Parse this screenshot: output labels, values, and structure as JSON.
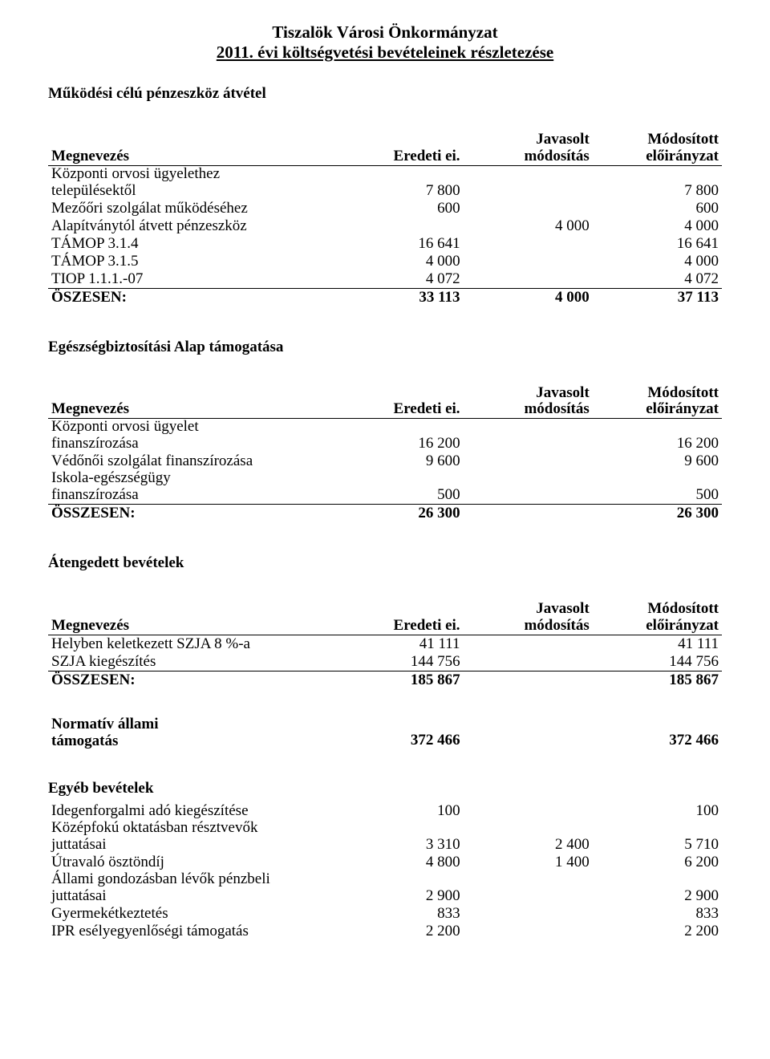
{
  "title": {
    "line1": "Tiszalök Városi Önkormányzat",
    "line2": "2011. évi költségvetési bevételeinek részletezése"
  },
  "headers": {
    "name": "Megnevezés",
    "col2": "Eredeti ei.",
    "col3a": "Javasolt",
    "col3b": "módosítás",
    "col4a": "Módosított",
    "col4b": "előirányzat"
  },
  "section1": {
    "title": "Működési célú pénzeszköz átvétel",
    "rows": [
      {
        "name_a": "Központi orvosi ügyelethez",
        "name_b": "településektől",
        "c2": "7 800",
        "c3": "",
        "c4": "7 800"
      },
      {
        "name_a": "Mezőőri szolgálat működéséhez",
        "name_b": "",
        "c2": "600",
        "c3": "",
        "c4": "600"
      },
      {
        "name_a": "Alapítványtól átvett pénzeszköz",
        "name_b": "",
        "c2": "",
        "c3": "4 000",
        "c4": "4 000"
      },
      {
        "name_a": "TÁMOP 3.1.4",
        "name_b": "",
        "c2": "16 641",
        "c3": "",
        "c4": "16 641"
      },
      {
        "name_a": "TÁMOP 3.1.5",
        "name_b": "",
        "c2": "4 000",
        "c3": "",
        "c4": "4 000"
      },
      {
        "name_a": "TIOP 1.1.1.-07",
        "name_b": "",
        "c2": "4 072",
        "c3": "",
        "c4": "4 072"
      }
    ],
    "total": {
      "label": "ÖSZESEN:",
      "c2": "33 113",
      "c3": "4 000",
      "c4": "37 113"
    }
  },
  "section2": {
    "title": "Egészségbiztosítási Alap támogatása",
    "rows": [
      {
        "name_a": "Központi orvosi ügyelet",
        "name_b": "finanszírozása",
        "c2": "16 200",
        "c3": "",
        "c4": "16 200"
      },
      {
        "name_a": "Védőnői szolgálat finanszírozása",
        "name_b": "",
        "c2": "9 600",
        "c3": "",
        "c4": "9 600"
      },
      {
        "name_a": "Iskola-egészségügy",
        "name_b": "finanszírozása",
        "c2": "500",
        "c3": "",
        "c4": "500"
      }
    ],
    "total": {
      "label": "ÖSSZESEN:",
      "c2": "26 300",
      "c3": "",
      "c4": "26 300"
    }
  },
  "section3": {
    "title": "Átengedett bevételek",
    "rows": [
      {
        "name_a": "Helyben keletkezett SZJA 8 %-a",
        "name_b": "",
        "c2": "41 111",
        "c3": "",
        "c4": "41 111"
      },
      {
        "name_a": "SZJA  kiegészítés",
        "name_b": "",
        "c2": "144 756",
        "c3": "",
        "c4": "144 756"
      }
    ],
    "total": {
      "label": "ÖSSZESEN:",
      "c2": "185 867",
      "c3": "",
      "c4": "185 867"
    }
  },
  "section4": {
    "row": {
      "name_a": "Normatív állami",
      "name_b": "támogatás",
      "c2": "372 466",
      "c3": "",
      "c4": "372 466"
    }
  },
  "section5": {
    "title": "Egyéb bevételek",
    "rows": [
      {
        "name_a": "Idegenforgalmi adó kiegészítése",
        "name_b": "",
        "c2": "100",
        "c3": "",
        "c4": "100"
      },
      {
        "name_a": "Középfokú oktatásban résztvevők",
        "name_b": "juttatásai",
        "c2": "3 310",
        "c3": "2 400",
        "c4": "5 710"
      },
      {
        "name_a": "Útravaló ösztöndíj",
        "name_b": "",
        "c2": "4 800",
        "c3": "1 400",
        "c4": "6 200"
      },
      {
        "name_a": "Állami gondozásban lévők pénzbeli",
        "name_b": "juttatásai",
        "c2": "2 900",
        "c3": "",
        "c4": "2 900"
      },
      {
        "name_a": "Gyermekétkeztetés",
        "name_b": "",
        "c2": "833",
        "c3": "",
        "c4": "833"
      },
      {
        "name_a": "IPR esélyegyenlőségi támogatás",
        "name_b": "",
        "c2": "2 200",
        "c3": "",
        "c4": "2 200"
      }
    ]
  }
}
